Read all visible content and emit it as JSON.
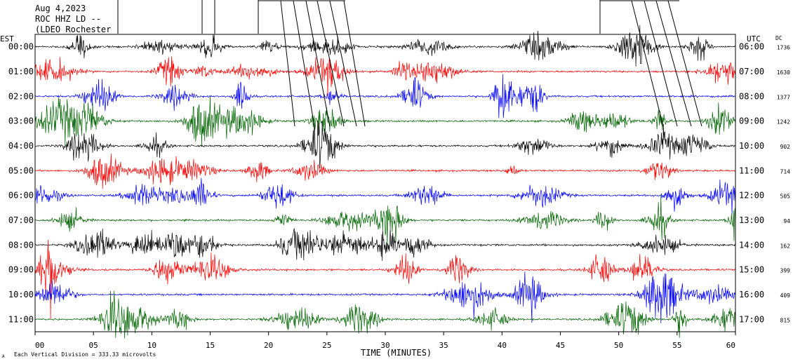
{
  "header": {
    "line1": "Aug 4,2023",
    "line2": "ROC HHZ LD --",
    "line3": "(LDEO Rochester"
  },
  "axes": {
    "left_label": "EST",
    "right_label": "UTC",
    "dc_label": "DC",
    "x_title": "TIME (MINUTES)",
    "footer": "Each Vertical Division = 333.33 microvolts",
    "footer_mark": "A"
  },
  "colors": {
    "c0": "#000000",
    "c1": "#ff0000",
    "c2": "#0000ff",
    "c3": "#006400",
    "frame": "#000000"
  },
  "chart_data": {
    "type": "line",
    "title": "Aug 4,2023 ROC HHZ LD --",
    "xlabel": "TIME (MINUTES)",
    "xlim": [
      0,
      60
    ],
    "x_ticks": [
      "00",
      "05",
      "10",
      "15",
      "20",
      "25",
      "30",
      "35",
      "40",
      "45",
      "50",
      "55",
      "60"
    ],
    "scale_note": "Each Vertical Division = 333.33 microvolts",
    "rows": [
      {
        "est": "00:00",
        "utc": "06:00",
        "dc": "1736",
        "color": "c0"
      },
      {
        "est": "01:00",
        "utc": "07:00",
        "dc": "1630",
        "color": "c1"
      },
      {
        "est": "02:00",
        "utc": "08:00",
        "dc": "1377",
        "color": "c2"
      },
      {
        "est": "03:00",
        "utc": "09:00",
        "dc": "1242",
        "color": "c3"
      },
      {
        "est": "04:00",
        "utc": "10:00",
        "dc": "902",
        "color": "c0"
      },
      {
        "est": "05:00",
        "utc": "11:00",
        "dc": "714",
        "color": "c1"
      },
      {
        "est": "06:00",
        "utc": "12:00",
        "dc": "505",
        "color": "c2"
      },
      {
        "est": "07:00",
        "utc": "13:00",
        "dc": "94",
        "color": "c3"
      },
      {
        "est": "08:00",
        "utc": "14:00",
        "dc": "162",
        "color": "c0"
      },
      {
        "est": "09:00",
        "utc": "15:00",
        "dc": "399",
        "color": "c1"
      },
      {
        "est": "10:00",
        "utc": "16:00",
        "dc": "409",
        "color": "c2"
      },
      {
        "est": "11:00",
        "utc": "17:00",
        "dc": "815",
        "color": "c3"
      }
    ]
  }
}
